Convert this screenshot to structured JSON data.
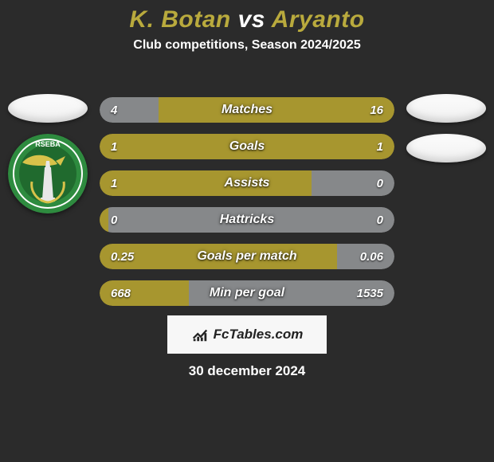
{
  "title_left": "K. Botan",
  "title_vs_word": "vs",
  "title_right": "Aryanto",
  "title_color_accent": "#b9aa3d",
  "subtitle": "Club competitions, Season 2024/2025",
  "footer_brand": "FcTables.com",
  "footer_date": "30 december 2024",
  "colors": {
    "bg": "#2b2b2b",
    "left_fill": "#a7962f",
    "right_fill": "#86888a",
    "flag_bg": "#f6f6f6"
  },
  "left_club_badge": {
    "outer": "#2e8b3f",
    "ring": "#ffffff",
    "inner": "#206a2e",
    "accent": "#d8c24a",
    "text_top": "RSEBA"
  },
  "bars": [
    {
      "label": "Matches",
      "left_val": "4",
      "right_val": "16",
      "left_pct": 20.0,
      "loser": "left"
    },
    {
      "label": "Goals",
      "left_val": "1",
      "right_val": "1",
      "left_pct": 50.0,
      "loser": "none"
    },
    {
      "label": "Assists",
      "left_val": "1",
      "right_val": "0",
      "left_pct": 72.0,
      "loser": "right"
    },
    {
      "label": "Hattricks",
      "left_val": "0",
      "right_val": "0",
      "left_pct": 3.0,
      "loser": "right"
    },
    {
      "label": "Goals per match",
      "left_val": "0.25",
      "right_val": "0.06",
      "left_pct": 80.6,
      "loser": "right"
    },
    {
      "label": "Min per goal",
      "left_val": "668",
      "right_val": "1535",
      "left_pct": 30.3,
      "loser": "right"
    }
  ]
}
